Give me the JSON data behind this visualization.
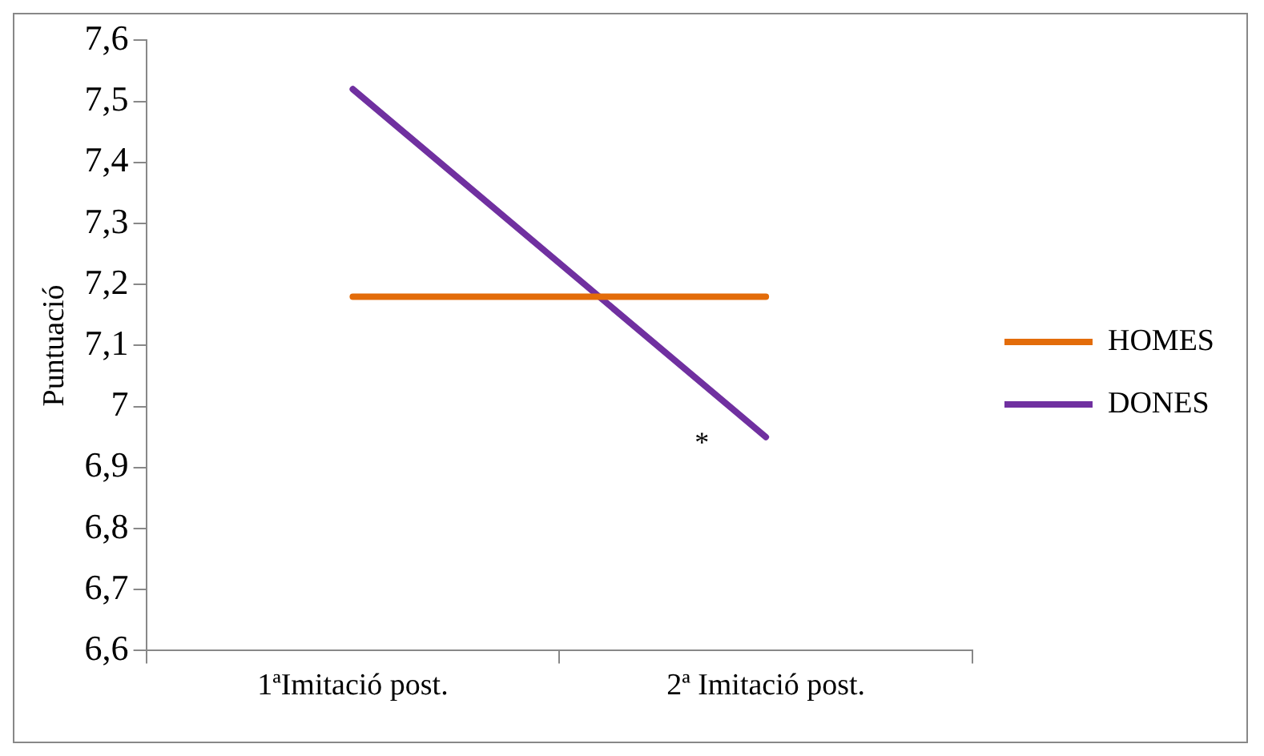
{
  "chart_data": {
    "type": "line",
    "ylabel": "Puntuació",
    "categories": [
      "1ªImitació post.",
      "2ª Imitació post."
    ],
    "series": [
      {
        "name": "HOMES",
        "color": "#e36c0a",
        "values": [
          7.18,
          7.18
        ]
      },
      {
        "name": "DONES",
        "color": "#7030a0",
        "values": [
          7.52,
          6.95
        ]
      }
    ],
    "ylim": [
      6.6,
      7.6
    ],
    "yticks": [
      {
        "value": 6.6,
        "label": "6,6"
      },
      {
        "value": 6.7,
        "label": "6,7"
      },
      {
        "value": 6.8,
        "label": "6,8"
      },
      {
        "value": 6.9,
        "label": "6,9"
      },
      {
        "value": 7,
        "label": "7"
      },
      {
        "value": 7.1,
        "label": "7,1"
      },
      {
        "value": 7.2,
        "label": "7,2"
      },
      {
        "value": 7.3,
        "label": "7,3"
      },
      {
        "value": 7.4,
        "label": "7,4"
      },
      {
        "value": 7.5,
        "label": "7,5"
      },
      {
        "value": 7.6,
        "label": "7,6"
      }
    ],
    "annotations": [
      {
        "text": "*",
        "x": "2ª Imitació post.",
        "y": 6.96
      }
    ],
    "grid": false,
    "legend": "right",
    "marker": "none",
    "line_style": "solid"
  }
}
